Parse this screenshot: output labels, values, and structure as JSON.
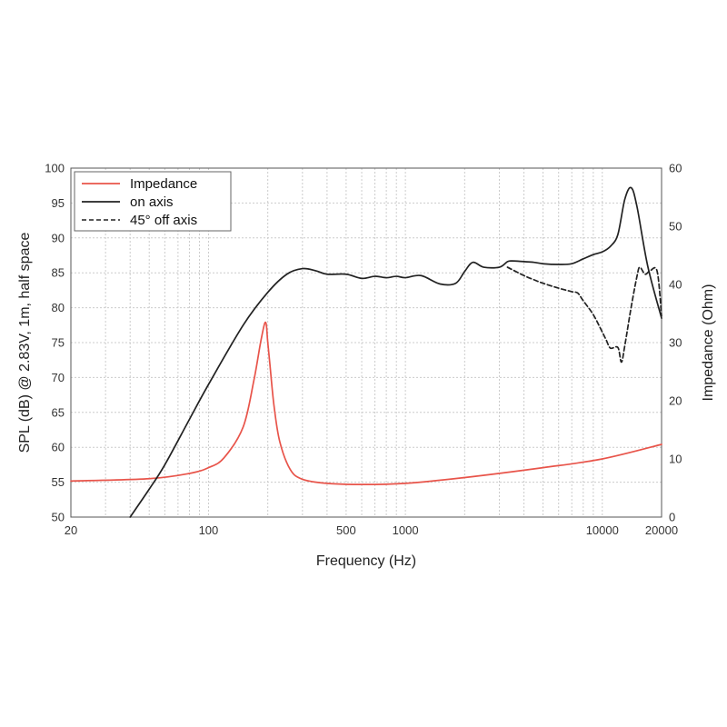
{
  "chart_data": {
    "type": "line",
    "x_scale": "log",
    "xlabel": "Frequency (Hz)",
    "ylabel_left": "SPL (dB) @ 2.83V, 1m, half space",
    "ylabel_right": "Impedance (Ohm)",
    "xlim": [
      20,
      20000
    ],
    "ylim_left": [
      50,
      100
    ],
    "ylim_right": [
      0,
      60
    ],
    "x_tick_labels": [
      "20",
      "100",
      "500",
      "1000",
      "10000",
      "20000"
    ],
    "y_left_tick_labels": [
      "50",
      "55",
      "60",
      "65",
      "70",
      "75",
      "80",
      "85",
      "90",
      "95",
      "100"
    ],
    "y_right_tick_labels": [
      "0",
      "10",
      "20",
      "30",
      "40",
      "50",
      "60"
    ],
    "grid": true,
    "legend_position": "top-left",
    "series": [
      {
        "name": "Impedance",
        "axis": "right",
        "color": "#e8544a",
        "style": "solid",
        "x": [
          20,
          50,
          80,
          100,
          120,
          150,
          170,
          185,
          195,
          200,
          205,
          215,
          230,
          260,
          300,
          400,
          600,
          1000,
          2000,
          5000,
          10000,
          20000
        ],
        "y": [
          6.2,
          6.6,
          7.5,
          8.5,
          10.2,
          15.5,
          23.5,
          30.5,
          33.5,
          30,
          26.3,
          19.2,
          13,
          8.2,
          6.5,
          5.8,
          5.6,
          5.8,
          6.8,
          8.5,
          10,
          12.5
        ]
      },
      {
        "name": "on axis",
        "axis": "left",
        "color": "#222222",
        "style": "solid",
        "x": [
          40,
          50,
          60,
          80,
          100,
          150,
          200,
          250,
          300,
          350,
          400,
          500,
          600,
          700,
          800,
          900,
          1000,
          1200,
          1500,
          1800,
          2000,
          2200,
          2500,
          3000,
          3300,
          3500,
          4000,
          4500,
          5000,
          6000,
          7000,
          8000,
          9000,
          10000,
          11000,
          12000,
          13000,
          14000,
          15000,
          17000,
          20000
        ],
        "y": [
          50,
          54,
          57.5,
          64,
          69,
          77.5,
          82.2,
          84.8,
          85.6,
          85.3,
          84.8,
          84.8,
          84.2,
          84.5,
          84.3,
          84.5,
          84.3,
          84.6,
          83.4,
          83.5,
          85.2,
          86.5,
          85.8,
          85.8,
          86.6,
          86.7,
          86.6,
          86.5,
          86.3,
          86.2,
          86.3,
          87,
          87.6,
          88,
          88.8,
          90.5,
          95.5,
          97.2,
          94.5,
          86,
          78.5
        ]
      },
      {
        "name": "45° off axis",
        "axis": "left",
        "color": "#222222",
        "style": "dashed",
        "x": [
          3300,
          4000,
          4500,
          5000,
          6000,
          7000,
          7500,
          8000,
          9000,
          10000,
          10500,
          11000,
          12000,
          12500,
          13000,
          14000,
          15000,
          15500,
          16500,
          17500,
          19000,
          20000
        ],
        "y": [
          85.8,
          84.6,
          84,
          83.5,
          82.8,
          82.3,
          82.1,
          81,
          79,
          76.5,
          75.3,
          74.2,
          74.3,
          72.2,
          74.5,
          80,
          84.5,
          85.8,
          84.8,
          85.3,
          85.2,
          78.8
        ]
      }
    ]
  }
}
